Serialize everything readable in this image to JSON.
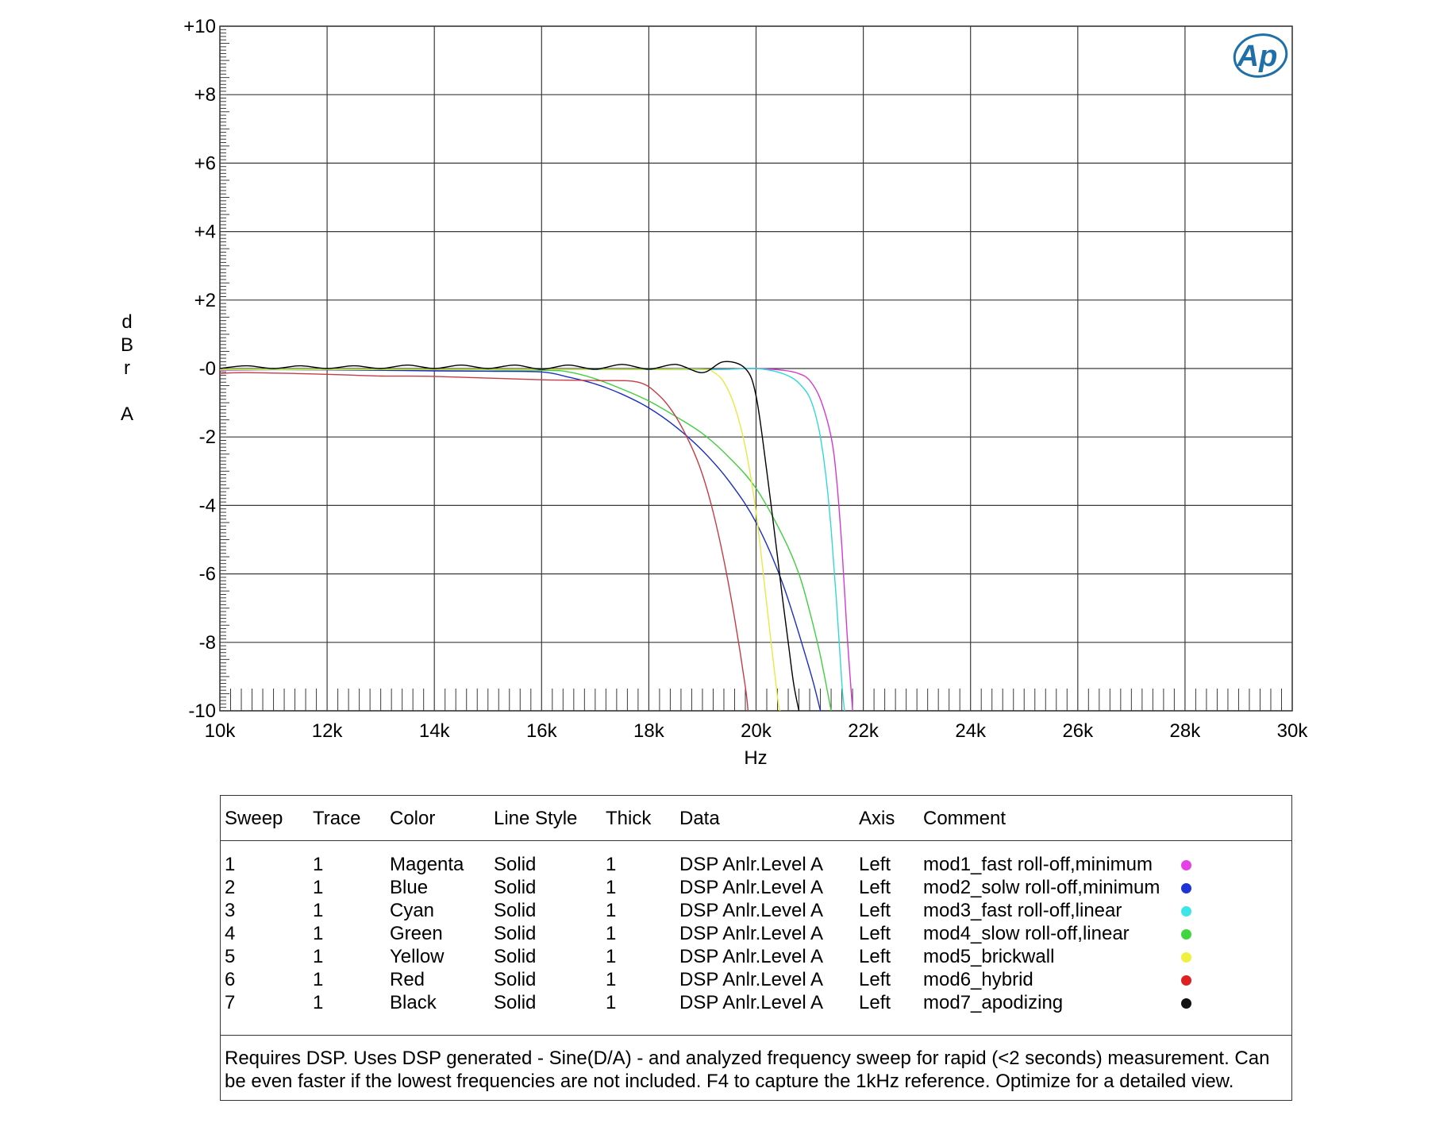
{
  "chart_data": {
    "type": "line",
    "ylabel_letters": [
      "d",
      "B",
      "r",
      "",
      "A"
    ],
    "xlabel": "Hz",
    "xlim": [
      10000,
      30000
    ],
    "ylim": [
      -10,
      10
    ],
    "x_ticks": [
      10000,
      12000,
      14000,
      16000,
      18000,
      20000,
      22000,
      24000,
      26000,
      28000,
      30000
    ],
    "x_tick_labels": [
      "10k",
      "12k",
      "14k",
      "16k",
      "18k",
      "20k",
      "22k",
      "24k",
      "26k",
      "28k",
      "30k"
    ],
    "y_ticks": [
      10,
      8,
      6,
      4,
      2,
      0,
      -2,
      -4,
      -6,
      -8,
      -10
    ],
    "y_tick_labels": [
      "+10",
      "+8",
      "+6",
      "+4",
      "+2",
      "-0",
      "-2",
      "-4",
      "-6",
      "-8",
      "-10"
    ],
    "grid": true,
    "logo_text": "Ap",
    "colors": {
      "grid": "#3a3a3a",
      "logo": "#1f6fa8"
    },
    "series": [
      {
        "name": "mod1_fast roll-off,minimum",
        "color": "#d13bd1",
        "x": [
          10000,
          12000,
          14000,
          16000,
          18000,
          19000,
          19500,
          20000,
          20500,
          20800,
          21000,
          21200,
          21400,
          21500,
          21600,
          21700,
          21800
        ],
        "y": [
          -0.05,
          -0.02,
          -0.04,
          -0.02,
          -0.03,
          -0.03,
          -0.02,
          0.0,
          -0.05,
          -0.15,
          -0.35,
          -0.9,
          -2.0,
          -3.2,
          -5.2,
          -7.8,
          -10
        ]
      },
      {
        "name": "mod2_solw roll-off,minimum",
        "color": "#1a2fbf",
        "x": [
          10000,
          12000,
          14000,
          15000,
          16000,
          16500,
          17000,
          17500,
          18000,
          18500,
          19000,
          19500,
          20000,
          20500,
          21000,
          21200
        ],
        "y": [
          -0.03,
          -0.04,
          -0.07,
          -0.08,
          -0.1,
          -0.25,
          -0.45,
          -0.75,
          -1.15,
          -1.7,
          -2.4,
          -3.3,
          -4.5,
          -6.3,
          -8.8,
          -10
        ]
      },
      {
        "name": "mod3_fast roll-off,linear",
        "color": "#35d6d6",
        "x": [
          10000,
          12000,
          14000,
          16000,
          18000,
          19000,
          19500,
          20000,
          20400,
          20700,
          20900,
          21000,
          21100,
          21200,
          21300,
          21400,
          21500,
          21600,
          21650
        ],
        "y": [
          -0.03,
          -0.03,
          -0.03,
          -0.03,
          -0.03,
          -0.03,
          -0.02,
          0.0,
          -0.1,
          -0.3,
          -0.6,
          -0.85,
          -1.3,
          -2.0,
          -3.1,
          -4.7,
          -6.8,
          -9.2,
          -10
        ]
      },
      {
        "name": "mod4_slow roll-off,linear",
        "color": "#3fcf3f",
        "x": [
          10000,
          12000,
          14000,
          16000,
          16500,
          17000,
          17500,
          18000,
          18500,
          19000,
          19500,
          20000,
          20500,
          20800,
          21000,
          21200,
          21400
        ],
        "y": [
          -0.02,
          -0.02,
          -0.03,
          -0.05,
          -0.1,
          -0.3,
          -0.6,
          -0.95,
          -1.4,
          -1.9,
          -2.6,
          -3.5,
          -4.9,
          -6.0,
          -7.1,
          -8.4,
          -10
        ]
      },
      {
        "name": "mod5_brickwall",
        "color": "#e8e846",
        "x": [
          10000,
          12000,
          14000,
          16000,
          18000,
          19000,
          19200,
          19400,
          19600,
          19800,
          20000,
          20200,
          20400,
          20450
        ],
        "y": [
          -0.02,
          -0.02,
          -0.02,
          -0.02,
          -0.02,
          -0.02,
          -0.1,
          -0.4,
          -1.1,
          -2.3,
          -4.2,
          -6.9,
          -9.6,
          -10
        ]
      },
      {
        "name": "mod6_hybrid",
        "color": "#c43c45",
        "x": [
          10000,
          10500,
          12000,
          13000,
          14000,
          16000,
          17000,
          17800,
          18200,
          18500,
          18800,
          19000,
          19200,
          19400,
          19600,
          19800,
          19850
        ],
        "y": [
          -0.15,
          -0.12,
          -0.17,
          -0.22,
          -0.23,
          -0.33,
          -0.35,
          -0.4,
          -0.8,
          -1.4,
          -2.3,
          -3.1,
          -4.2,
          -5.6,
          -7.3,
          -9.3,
          -10
        ]
      },
      {
        "name": "mod7_apodizing",
        "color": "#000000",
        "x": [
          10000,
          10500,
          11000,
          11500,
          12000,
          12500,
          13000,
          13500,
          14000,
          14500,
          15000,
          15500,
          16000,
          16500,
          17000,
          17500,
          18000,
          18500,
          19000,
          19400,
          19800,
          20000,
          20200,
          20400,
          20500,
          20600,
          20700,
          20800
        ],
        "y": [
          0.0,
          0.08,
          0.0,
          0.08,
          0.0,
          0.08,
          0.0,
          0.1,
          0.0,
          0.1,
          0.0,
          0.1,
          -0.02,
          0.1,
          -0.02,
          0.12,
          -0.02,
          0.12,
          -0.12,
          0.2,
          0.0,
          -0.8,
          -3.0,
          -5.5,
          -6.8,
          -8.0,
          -9.2,
          -10
        ]
      }
    ]
  },
  "legend": {
    "headers": {
      "sweep": "Sweep",
      "trace": "Trace",
      "color": "Color",
      "line_style": "Line Style",
      "thick": "Thick",
      "data": "Data",
      "axis": "Axis",
      "comment": "Comment"
    },
    "rows": [
      {
        "sweep": "1",
        "trace": "1",
        "color": "Magenta",
        "style": "Solid",
        "thick": "1",
        "data": "DSP Anlr.Level A",
        "axis": "Left",
        "comment": "mod1_fast roll-off,minimum",
        "dot": "#e540e5"
      },
      {
        "sweep": "2",
        "trace": "1",
        "color": "Blue",
        "style": "Solid",
        "thick": "1",
        "data": "DSP Anlr.Level A",
        "axis": "Left",
        "comment": "mod2_solw roll-off,minimum",
        "dot": "#1f33d6"
      },
      {
        "sweep": "3",
        "trace": "1",
        "color": "Cyan",
        "style": "Solid",
        "thick": "1",
        "data": "DSP Anlr.Level A",
        "axis": "Left",
        "comment": "mod3_fast roll-off,linear",
        "dot": "#3de6e6"
      },
      {
        "sweep": "4",
        "trace": "1",
        "color": "Green",
        "style": "Solid",
        "thick": "1",
        "data": "DSP Anlr.Level A",
        "axis": "Left",
        "comment": "mod4_slow roll-off,linear",
        "dot": "#3fd63f"
      },
      {
        "sweep": "5",
        "trace": "1",
        "color": "Yellow",
        "style": "Solid",
        "thick": "1",
        "data": "DSP Anlr.Level A",
        "axis": "Left",
        "comment": "mod5_brickwall",
        "dot": "#f0f040"
      },
      {
        "sweep": "6",
        "trace": "1",
        "color": "Red",
        "style": "Solid",
        "thick": "1",
        "data": "DSP Anlr.Level A",
        "axis": "Left",
        "comment": "mod6_hybrid",
        "dot": "#e02020"
      },
      {
        "sweep": "7",
        "trace": "1",
        "color": "Black",
        "style": "Solid",
        "thick": "1",
        "data": "DSP Anlr.Level A",
        "axis": "Left",
        "comment": "mod7_apodizing",
        "dot": "#111111"
      }
    ],
    "notes": "Requires DSP.  Uses DSP generated - Sine(D/A) - and analyzed frequency sweep for rapid (<2 seconds) measurement. Can be even faster if the lowest frequencies are not included. F4 to capture the 1kHz reference. Optimize for a detailed view."
  }
}
